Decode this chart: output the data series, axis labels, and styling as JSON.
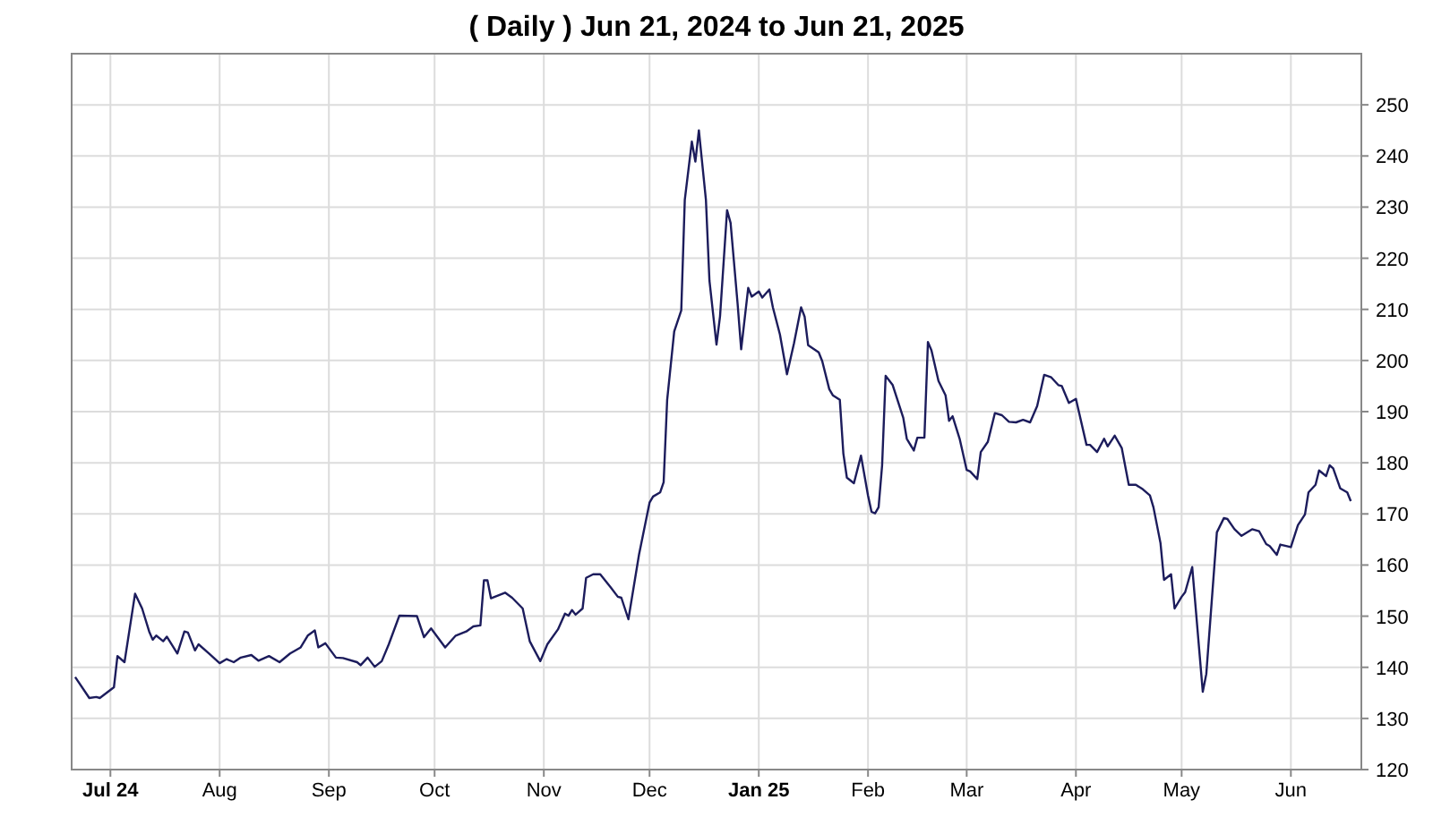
{
  "chart_data": {
    "type": "line",
    "title": "( Daily ) Jun 21, 2024 to Jun 21, 2025",
    "x": [
      "2024-06-21",
      "2024-06-25",
      "2024-06-27",
      "2024-06-28",
      "2024-07-02",
      "2024-07-03",
      "2024-07-05",
      "2024-07-08",
      "2024-07-10",
      "2024-07-12",
      "2024-07-13",
      "2024-07-14",
      "2024-07-16",
      "2024-07-17",
      "2024-07-20",
      "2024-07-22",
      "2024-07-23",
      "2024-07-25",
      "2024-07-26",
      "2024-07-29",
      "2024-08-01",
      "2024-08-03",
      "2024-08-05",
      "2024-08-07",
      "2024-08-10",
      "2024-08-12",
      "2024-08-15",
      "2024-08-18",
      "2024-08-21",
      "2024-08-24",
      "2024-08-26",
      "2024-08-28",
      "2024-08-29",
      "2024-08-31",
      "2024-09-03",
      "2024-09-05",
      "2024-09-09",
      "2024-09-10",
      "2024-09-12",
      "2024-09-14",
      "2024-09-16",
      "2024-09-18",
      "2024-09-21",
      "2024-09-26",
      "2024-09-28",
      "2024-09-30",
      "2024-10-04",
      "2024-10-07",
      "2024-10-10",
      "2024-10-12",
      "2024-10-14",
      "2024-10-15",
      "2024-10-16",
      "2024-10-17",
      "2024-10-21",
      "2024-10-23",
      "2024-10-26",
      "2024-10-28",
      "2024-10-31",
      "2024-11-02",
      "2024-11-05",
      "2024-11-07",
      "2024-11-08",
      "2024-11-09",
      "2024-11-10",
      "2024-11-12",
      "2024-11-13",
      "2024-11-15",
      "2024-11-17",
      "2024-11-20",
      "2024-11-22",
      "2024-11-23",
      "2024-11-25",
      "2024-11-28",
      "2024-12-01",
      "2024-12-02",
      "2024-12-04",
      "2024-12-05",
      "2024-12-06",
      "2024-12-08",
      "2024-12-10",
      "2024-12-11",
      "2024-12-13",
      "2024-12-14",
      "2024-12-15",
      "2024-12-17",
      "2024-12-18",
      "2024-12-20",
      "2024-12-21",
      "2024-12-23",
      "2024-12-24",
      "2024-12-26",
      "2024-12-27",
      "2024-12-29",
      "2024-12-30",
      "2025-01-01",
      "2025-01-02",
      "2025-01-04",
      "2025-01-05",
      "2025-01-07",
      "2025-01-09",
      "2025-01-11",
      "2025-01-13",
      "2025-01-14",
      "2025-01-15",
      "2025-01-18",
      "2025-01-19",
      "2025-01-21",
      "2025-01-22",
      "2025-01-24",
      "2025-01-25",
      "2025-01-26",
      "2025-01-28",
      "2025-01-30",
      "2025-02-01",
      "2025-02-02",
      "2025-02-03",
      "2025-02-04",
      "2025-02-05",
      "2025-02-06",
      "2025-02-08",
      "2025-02-11",
      "2025-02-12",
      "2025-02-14",
      "2025-02-15",
      "2025-02-17",
      "2025-02-18",
      "2025-02-19",
      "2025-02-21",
      "2025-02-23",
      "2025-02-24",
      "2025-02-25",
      "2025-02-27",
      "2025-03-01",
      "2025-03-02",
      "2025-03-04",
      "2025-03-05",
      "2025-03-07",
      "2025-03-09",
      "2025-03-11",
      "2025-03-13",
      "2025-03-15",
      "2025-03-17",
      "2025-03-19",
      "2025-03-21",
      "2025-03-23",
      "2025-03-25",
      "2025-03-27",
      "2025-03-28",
      "2025-03-30",
      "2025-04-01",
      "2025-04-04",
      "2025-04-05",
      "2025-04-07",
      "2025-04-09",
      "2025-04-10",
      "2025-04-12",
      "2025-04-14",
      "2025-04-16",
      "2025-04-18",
      "2025-04-20",
      "2025-04-22",
      "2025-04-23",
      "2025-04-25",
      "2025-04-26",
      "2025-04-28",
      "2025-04-29",
      "2025-05-01",
      "2025-05-02",
      "2025-05-04",
      "2025-05-07",
      "2025-05-08",
      "2025-05-11",
      "2025-05-13",
      "2025-05-14",
      "2025-05-16",
      "2025-05-18",
      "2025-05-21",
      "2025-05-23",
      "2025-05-25",
      "2025-05-26",
      "2025-05-28",
      "2025-05-29",
      "2025-06-01",
      "2025-06-03",
      "2025-06-05",
      "2025-06-06",
      "2025-06-08",
      "2025-06-09",
      "2025-06-11",
      "2025-06-12",
      "2025-06-13",
      "2025-06-15",
      "2025-06-17",
      "2025-06-18"
    ],
    "series": [
      {
        "color": "#1c1c5c",
        "values": [
          138.1,
          134.0,
          134.2,
          134.0,
          136.1,
          142.2,
          141.0,
          154.4,
          151.5,
          147.0,
          145.4,
          146.2,
          145.1,
          146.0,
          142.7,
          147.0,
          146.8,
          143.3,
          144.5,
          142.7,
          140.8,
          141.6,
          141.0,
          141.9,
          142.4,
          141.3,
          142.2,
          141.0,
          142.7,
          143.9,
          146.2,
          147.2,
          143.9,
          144.7,
          141.9,
          141.8,
          141.0,
          140.4,
          141.9,
          140.1,
          141.2,
          144.5,
          150.1,
          150.0,
          145.9,
          147.6,
          143.9,
          146.2,
          147.0,
          148.0,
          148.2,
          157.0,
          157.0,
          153.5,
          154.6,
          153.6,
          151.5,
          145.1,
          141.2,
          144.5,
          147.4,
          150.5,
          150.1,
          151.2,
          150.3,
          151.5,
          157.5,
          158.2,
          158.2,
          155.6,
          153.8,
          153.6,
          149.4,
          162.0,
          172.2,
          173.4,
          174.2,
          176.2,
          192.3,
          205.7,
          209.8,
          231.4,
          242.8,
          238.9,
          245.0,
          231.4,
          215.6,
          203.1,
          208.6,
          229.4,
          226.9,
          211.0,
          202.2,
          214.2,
          212.5,
          213.5,
          212.3,
          213.9,
          210.4,
          205.1,
          197.3,
          203.4,
          210.4,
          208.6,
          203.0,
          201.6,
          199.9,
          194.4,
          193.2,
          192.3,
          181.8,
          177.1,
          176.0,
          181.4,
          173.6,
          170.4,
          170.1,
          171.3,
          179.5,
          197.0,
          195.2,
          188.8,
          184.7,
          182.4,
          184.9,
          184.9,
          203.6,
          202.0,
          196.0,
          193.2,
          188.2,
          189.1,
          184.7,
          178.6,
          178.3,
          176.8,
          182.1,
          184.1,
          189.7,
          189.3,
          188.0,
          187.9,
          188.4,
          187.9,
          191.1,
          197.2,
          196.7,
          195.2,
          195.0,
          191.7,
          192.5,
          183.5,
          183.5,
          182.1,
          184.7,
          183.2,
          185.3,
          182.9,
          175.7,
          175.7,
          174.8,
          173.6,
          171.3,
          164.3,
          157.1,
          158.2,
          151.5,
          153.8,
          154.7,
          159.6,
          135.2,
          138.7,
          166.4,
          169.2,
          169.0,
          167.0,
          165.7,
          167.0,
          166.6,
          164.1,
          163.7,
          162.0,
          164.0,
          163.5,
          167.8,
          169.9,
          174.2,
          175.7,
          178.5,
          177.4,
          179.5,
          178.9,
          175.0,
          174.2,
          172.5
        ]
      }
    ],
    "xlim": [
      "2024-06-20",
      "2025-06-21"
    ],
    "xticks": [
      {
        "value": "2024-07-01",
        "label": "Jul 24"
      },
      {
        "value": "2024-08-01",
        "label": "Aug"
      },
      {
        "value": "2024-09-01",
        "label": "Sep"
      },
      {
        "value": "2024-10-01",
        "label": "Oct"
      },
      {
        "value": "2024-11-01",
        "label": "Nov"
      },
      {
        "value": "2024-12-01",
        "label": "Dec"
      },
      {
        "value": "2025-01-01",
        "label": "Jan 25"
      },
      {
        "value": "2025-02-01",
        "label": "Feb"
      },
      {
        "value": "2025-03-01",
        "label": "Mar"
      },
      {
        "value": "2025-04-01",
        "label": "Apr"
      },
      {
        "value": "2025-05-01",
        "label": "May"
      },
      {
        "value": "2025-06-01",
        "label": "Jun"
      }
    ],
    "ylim": [
      120,
      260
    ],
    "yticks": [
      120,
      130,
      140,
      150,
      160,
      170,
      180,
      190,
      200,
      210,
      220,
      230,
      240,
      250
    ],
    "grid": true,
    "marker": "none",
    "line_style": "solid"
  }
}
